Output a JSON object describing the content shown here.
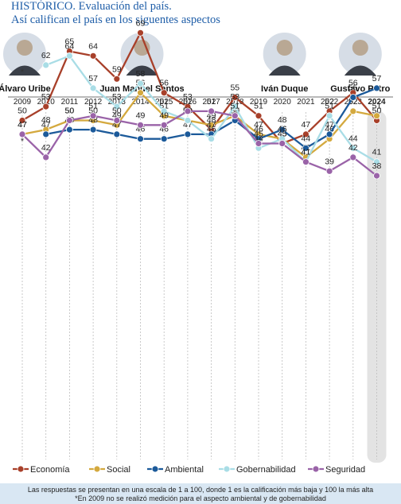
{
  "header": {
    "title_line1": "HISTÓRICO. Evaluación del país.",
    "title_line2": "Así califican el país en los siguentes aspectos"
  },
  "footer": {
    "note_line1": "Las respuestas se presentan en una escala de 1 a 100, donde 1 es la calificación más baja y 100 la más alta",
    "note_line2": "*En 2009 no se realizó medición para el aspecto ambiental y de gobernabilidad"
  },
  "presidents": [
    {
      "name": "Álvaro Uribe",
      "year": "2009"
    },
    {
      "name": "Juan Manuel Santos",
      "year": "2014"
    },
    {
      "name": "Iván Duque",
      "year": "2020"
    },
    {
      "name": "Gustavo Petro",
      "year": "2023"
    }
  ],
  "chart_data": {
    "type": "line",
    "x": [
      "2009",
      "2010",
      "2011",
      "2012",
      "2013",
      "2014",
      "2015",
      "2016",
      "2017",
      "2018",
      "2019",
      "2020",
      "2021",
      "2022",
      "2023",
      "2024"
    ],
    "highlighted_category": "2024",
    "series": [
      {
        "name": "Economía",
        "color": "#a8402a",
        "values": [
          50,
          53,
          65,
          64,
          59,
          69,
          56,
          53,
          48,
          55,
          51,
          45,
          47,
          52,
          56,
          50
        ]
      },
      {
        "name": "Social",
        "color": "#d4a93e",
        "values": [
          47,
          48,
          50,
          50,
          49,
          56,
          51,
          50,
          49,
          51,
          47,
          46,
          42,
          46,
          52,
          51
        ]
      },
      {
        "name": "Ambiental",
        "color": "#1c5a9a",
        "values": [
          null,
          47,
          48,
          48,
          47,
          46,
          46,
          47,
          47,
          50,
          46,
          48,
          44,
          47,
          55,
          57
        ],
        "missing_marker": "*"
      },
      {
        "name": "Gobernabilidad",
        "color": "#a9dde6",
        "values": [
          null,
          62,
          64,
          57,
          53,
          58,
          52,
          50,
          46,
          53,
          44,
          46,
          41,
          51,
          44,
          41
        ],
        "missing_marker": "*"
      },
      {
        "name": "Seguridad",
        "color": "#9a63a8",
        "values": [
          47,
          42,
          50,
          51,
          50,
          49,
          49,
          52,
          52,
          51,
          45,
          45,
          41,
          39,
          42,
          38
        ]
      }
    ],
    "legend_position": "bottom"
  }
}
